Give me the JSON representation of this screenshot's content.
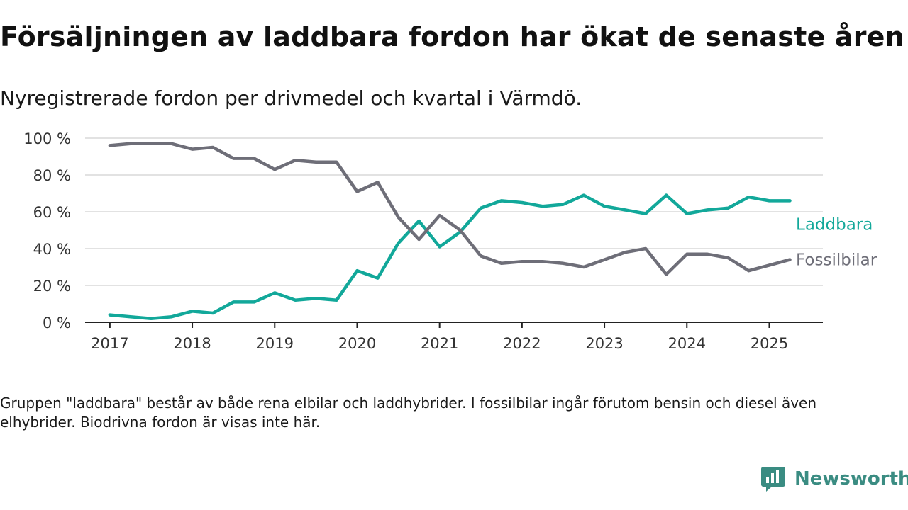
{
  "header": {
    "title": "Försäljningen av laddbara fordon har ökat de senaste åren",
    "subtitle": "Nyregistrerade fordon per drivmedel och kvartal i Värmdö."
  },
  "footnote": "Gruppen \"laddbara\" består av både rena elbilar och laddhybrider. I fossilbilar ingår förutom bensin och diesel även elhybrider. Biodrivna fordon är visas inte här.",
  "brand": {
    "name": "Newsworthy",
    "icon": "newsworthy-logo-icon",
    "color": "#3a8c82"
  },
  "chart_data": {
    "type": "line",
    "x": [
      2017.0,
      2017.25,
      2017.5,
      2017.75,
      2018.0,
      2018.25,
      2018.5,
      2018.75,
      2019.0,
      2019.25,
      2019.5,
      2019.75,
      2020.0,
      2020.25,
      2020.5,
      2020.75,
      2021.0,
      2021.25,
      2021.5,
      2021.75,
      2022.0,
      2022.25,
      2022.5,
      2022.75,
      2023.0,
      2023.25,
      2023.5,
      2023.75,
      2024.0,
      2024.25,
      2024.5,
      2024.75,
      2025.0,
      2025.25
    ],
    "xticks": [
      2017,
      2018,
      2019,
      2020,
      2021,
      2022,
      2023,
      2024,
      2025
    ],
    "xlim": [
      2016.7,
      2025.65
    ],
    "ylim": [
      0,
      100
    ],
    "yticks": [
      0,
      20,
      40,
      60,
      80,
      100
    ],
    "ytick_labels": [
      "0 %",
      "20 %",
      "40 %",
      "60 %",
      "80 %",
      "100 %"
    ],
    "grid": true,
    "legend": "inline labels at right end of lines",
    "series": [
      {
        "name": "Laddbara",
        "color": "#12a89a",
        "values": [
          4,
          3,
          2,
          3,
          6,
          5,
          11,
          11,
          16,
          12,
          13,
          12,
          28,
          24,
          43,
          55,
          41,
          49,
          62,
          66,
          65,
          63,
          64,
          69,
          63,
          61,
          59,
          69,
          59,
          61,
          62,
          68,
          66,
          66
        ]
      },
      {
        "name": "Fossilbilar",
        "color": "#6e6e78",
        "values": [
          96,
          97,
          97,
          97,
          94,
          95,
          89,
          89,
          83,
          88,
          87,
          87,
          71,
          76,
          57,
          45,
          58,
          50,
          36,
          32,
          33,
          33,
          32,
          30,
          34,
          38,
          40,
          26,
          37,
          37,
          35,
          28,
          31,
          34
        ]
      }
    ]
  }
}
